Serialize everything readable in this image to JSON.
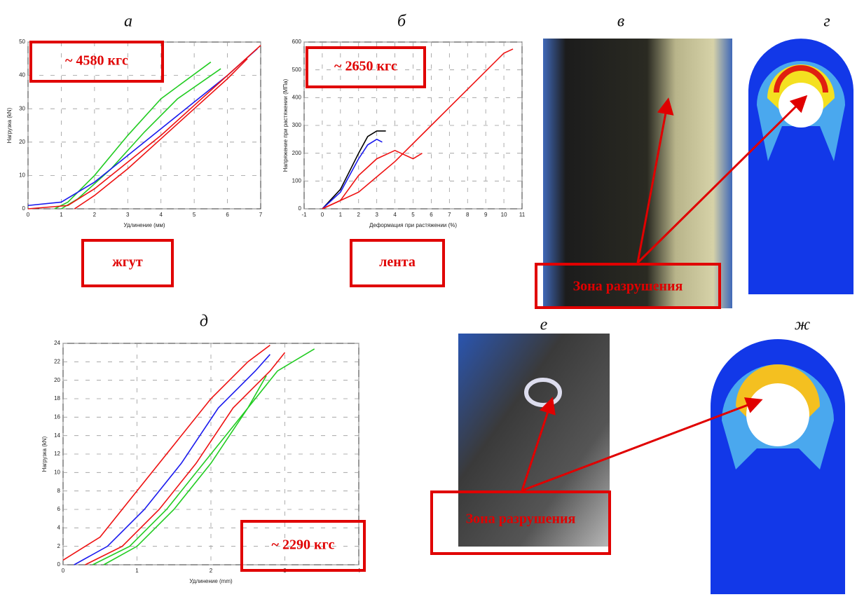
{
  "chart_data": [
    {
      "type": "line",
      "title": "а",
      "x_label": "Удлинение (мм)",
      "y_label": "Нагрузка (kN)",
      "xlim": [
        0,
        7
      ],
      "xticks": [
        0,
        1,
        2,
        3,
        4,
        5,
        6,
        7
      ],
      "ylim": [
        0,
        50
      ],
      "yticks": [
        0,
        10,
        20,
        30,
        40,
        50
      ],
      "grid": true,
      "annotations": [
        "~ 4580 кгс",
        "жгут"
      ],
      "series": [
        {
          "color": "#22cc22",
          "x": [
            0.8,
            1.2,
            2,
            3,
            4,
            5.5
          ],
          "values": [
            0,
            2,
            10,
            22,
            33,
            44
          ]
        },
        {
          "color": "#22cc22",
          "x": [
            1,
            1.5,
            2.5,
            3.5,
            4.5,
            5.8
          ],
          "values": [
            0,
            3,
            12,
            23,
            33,
            42
          ]
        },
        {
          "color": "#1a1aee",
          "x": [
            0,
            1,
            2,
            3,
            4,
            5,
            6,
            6.9
          ],
          "values": [
            1,
            2,
            8,
            16,
            24,
            32,
            40,
            48
          ]
        },
        {
          "color": "#ee1111",
          "x": [
            0,
            1.2,
            2,
            3,
            4,
            5,
            6,
            7
          ],
          "values": [
            0,
            1,
            6,
            14,
            22,
            31,
            40,
            49
          ]
        },
        {
          "color": "#ee1111",
          "x": [
            1.4,
            2,
            3,
            4,
            5,
            6,
            6.6
          ],
          "values": [
            0,
            4,
            12,
            21,
            30,
            39,
            45
          ]
        }
      ]
    },
    {
      "type": "line",
      "title": "б",
      "x_label": "Деформация при растяжении (%)",
      "y_label": "Напряжение при растяжении (МПа)",
      "xlim": [
        -1,
        11
      ],
      "xticks": [
        -1,
        0,
        1,
        2,
        3,
        4,
        5,
        6,
        7,
        8,
        9,
        10,
        11
      ],
      "ylim": [
        0,
        600
      ],
      "yticks": [
        0,
        100,
        200,
        300,
        400,
        500,
        600
      ],
      "grid": true,
      "annotations": [
        "~ 2650 кгс",
        "лента"
      ],
      "series": [
        {
          "color": "#000000",
          "x": [
            0,
            1,
            2,
            2.5,
            3,
            3.5
          ],
          "values": [
            0,
            70,
            200,
            260,
            280,
            280
          ]
        },
        {
          "color": "#1a1aee",
          "x": [
            0,
            1,
            2,
            2.5,
            3,
            3.3
          ],
          "values": [
            0,
            60,
            180,
            230,
            250,
            240
          ]
        },
        {
          "color": "#ee1111",
          "x": [
            0,
            1,
            2,
            3,
            4,
            5,
            5.5
          ],
          "values": [
            0,
            30,
            120,
            180,
            210,
            180,
            200
          ]
        },
        {
          "color": "#ee1111",
          "x": [
            0,
            2,
            4,
            6,
            8,
            10,
            10.5
          ],
          "values": [
            0,
            60,
            170,
            300,
            430,
            560,
            575
          ]
        }
      ]
    },
    {
      "type": "line",
      "title": "д",
      "x_label": "Удлинение (mm)",
      "y_label": "Нагрузка (kN)",
      "xlim": [
        0,
        4
      ],
      "xticks": [
        0,
        1,
        2,
        3,
        4
      ],
      "ylim": [
        0,
        24
      ],
      "yticks": [
        0,
        2,
        4,
        6,
        8,
        10,
        12,
        14,
        16,
        18,
        20,
        22,
        24
      ],
      "grid": true,
      "annotations": [
        "~ 2290 кгс"
      ],
      "series": [
        {
          "color": "#ee1111",
          "x": [
            0,
            0.5,
            1,
            1.5,
            2,
            2.5,
            2.8
          ],
          "values": [
            0.5,
            3,
            8,
            13,
            18,
            22,
            23.8
          ]
        },
        {
          "color": "#1a1aee",
          "x": [
            0.15,
            0.6,
            1.1,
            1.6,
            2.1,
            2.6,
            2.8
          ],
          "values": [
            0,
            2,
            6,
            11,
            17,
            21,
            22.8
          ]
        },
        {
          "color": "#ee1111",
          "x": [
            0.3,
            0.8,
            1.3,
            1.8,
            2.3,
            2.8,
            3
          ],
          "values": [
            0,
            2,
            6,
            11,
            17,
            21,
            23
          ]
        },
        {
          "color": "#22cc22",
          "x": [
            0.4,
            0.9,
            1.4,
            1.9,
            2.4,
            2.9,
            3.4
          ],
          "values": [
            0,
            2,
            6,
            11,
            16,
            21,
            23.4
          ]
        },
        {
          "color": "#22cc22",
          "x": [
            0.55,
            1,
            1.5,
            2,
            2.5,
            2.75
          ],
          "values": [
            0,
            2,
            6,
            11,
            17,
            20.5
          ]
        }
      ]
    }
  ],
  "panels": [
    {
      "letter": "в",
      "annotation": "Зона разрушения"
    },
    {
      "letter": "г"
    },
    {
      "letter": "е",
      "annotation": "Зона разрушения"
    },
    {
      "letter": "ж"
    }
  ]
}
